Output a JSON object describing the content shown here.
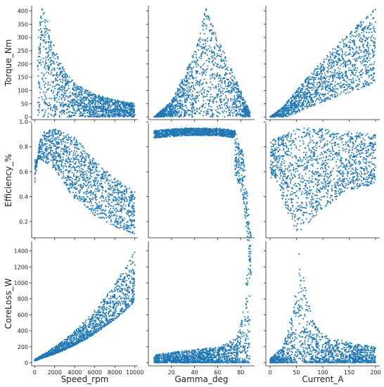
{
  "chart_data": {
    "type": "scatter",
    "subtype": "pairplot",
    "color": "#1f77b4",
    "grid": false,
    "variables": [
      "Speed_rpm",
      "Gamma_deg",
      "Current_A"
    ],
    "row_variables": [
      "Torque_Nm",
      "Efficiency_%",
      "CoreLoss_W"
    ],
    "x_axes": [
      {
        "label": "Speed_rpm",
        "range": [
          -300,
          10300
        ],
        "ticks": [
          0,
          2000,
          4000,
          6000,
          8000,
          10000
        ],
        "tick_labels": [
          "0",
          "2000",
          "4000",
          "6000",
          "8000",
          "10000"
        ]
      },
      {
        "label": "Gamma_deg",
        "range": [
          0,
          92
        ],
        "ticks": [
          20,
          40,
          60,
          80
        ],
        "tick_labels": [
          "20",
          "40",
          "60",
          "80"
        ]
      },
      {
        "label": "Current_A",
        "range": [
          -8,
          208
        ],
        "ticks": [
          0,
          50,
          100,
          150,
          200
        ],
        "tick_labels": [
          "0",
          "50",
          "100",
          "150",
          "200"
        ]
      }
    ],
    "y_axes": [
      {
        "label": "Torque_Nm",
        "range": [
          -10,
          420
        ],
        "ticks": [
          0,
          50,
          100,
          150,
          200,
          250,
          300,
          350,
          400
        ],
        "tick_labels": [
          "0",
          "50",
          "100",
          "150",
          "200",
          "250",
          "300",
          "350",
          "400"
        ]
      },
      {
        "label": "Efficiency_%",
        "range": [
          0.07,
          0.99
        ],
        "ticks": [
          0.2,
          0.4,
          0.6,
          0.8,
          1.0
        ],
        "tick_labels": [
          "0.2",
          "0.4",
          "0.6",
          "0.8",
          "1.0"
        ]
      },
      {
        "label": "CoreLoss_W",
        "range": [
          -40,
          1520
        ],
        "ticks": [
          0,
          200,
          400,
          600,
          800,
          1000,
          1200,
          1400
        ],
        "tick_labels": [
          "0",
          "200",
          "400",
          "600",
          "800",
          "1000",
          "1200",
          "1400"
        ]
      }
    ],
    "panels": [
      {
        "row": 0,
        "col": 0,
        "description_points": [
          [
            300,
            410
          ],
          [
            1000,
            410
          ],
          [
            2000,
            260
          ],
          [
            3000,
            175
          ],
          [
            4000,
            130
          ],
          [
            5000,
            105
          ],
          [
            6000,
            87
          ],
          [
            7000,
            75
          ],
          [
            8000,
            65
          ],
          [
            9000,
            58
          ],
          [
            10000,
            52
          ]
        ]
      },
      {
        "row": 0,
        "col": 1,
        "description_points": [
          [
            5,
            0
          ],
          [
            20,
            60
          ],
          [
            30,
            150
          ],
          [
            40,
            250
          ],
          [
            50,
            410
          ],
          [
            60,
            300
          ],
          [
            70,
            200
          ],
          [
            80,
            100
          ],
          [
            88,
            20
          ]
        ]
      },
      {
        "row": 0,
        "col": 2,
        "description_points": [
          [
            0,
            0
          ],
          [
            25,
            40
          ],
          [
            50,
            100
          ],
          [
            75,
            160
          ],
          [
            100,
            215
          ],
          [
            125,
            270
          ],
          [
            150,
            320
          ],
          [
            175,
            365
          ],
          [
            200,
            410
          ]
        ]
      },
      {
        "row": 1,
        "col": 0,
        "description_points": [
          [
            0,
            0.5
          ],
          [
            500,
            0.85
          ],
          [
            1000,
            0.93
          ],
          [
            2000,
            0.95
          ],
          [
            4000,
            0.88
          ],
          [
            6000,
            0.7
          ],
          [
            8000,
            0.55
          ],
          [
            10000,
            0.44
          ]
        ],
        "lower_envelope": [
          [
            500,
            0.7
          ],
          [
            2000,
            0.62
          ],
          [
            4000,
            0.38
          ],
          [
            6000,
            0.25
          ],
          [
            8000,
            0.16
          ],
          [
            10000,
            0.1
          ]
        ]
      },
      {
        "row": 1,
        "col": 1,
        "description_points": [
          [
            5,
            0.93
          ],
          [
            30,
            0.95
          ],
          [
            60,
            0.95
          ],
          [
            75,
            0.93
          ],
          [
            82,
            0.75
          ],
          [
            86,
            0.4
          ],
          [
            88,
            0.15
          ],
          [
            89,
            0.1
          ]
        ]
      },
      {
        "row": 1,
        "col": 2,
        "description_points": [
          [
            0,
            0.85
          ],
          [
            50,
            0.95
          ],
          [
            100,
            0.95
          ],
          [
            150,
            0.92
          ],
          [
            200,
            0.9
          ]
        ],
        "lower_envelope": [
          [
            10,
            0.55
          ],
          [
            30,
            0.3
          ],
          [
            50,
            0.1
          ],
          [
            100,
            0.3
          ],
          [
            150,
            0.45
          ],
          [
            200,
            0.5
          ]
        ]
      },
      {
        "row": 2,
        "col": 0,
        "description_points": [
          [
            0,
            40
          ],
          [
            1000,
            120
          ],
          [
            2000,
            200
          ],
          [
            3000,
            290
          ],
          [
            4000,
            400
          ],
          [
            5000,
            520
          ],
          [
            6000,
            660
          ],
          [
            7000,
            820
          ],
          [
            8000,
            990
          ],
          [
            9000,
            1180
          ],
          [
            10000,
            1400
          ]
        ]
      },
      {
        "row": 2,
        "col": 1,
        "description_points": [
          [
            5,
            100
          ],
          [
            30,
            150
          ],
          [
            60,
            200
          ],
          [
            75,
            300
          ],
          [
            80,
            500
          ],
          [
            84,
            900
          ],
          [
            86,
            1300
          ],
          [
            88,
            1500
          ]
        ]
      },
      {
        "row": 2,
        "col": 2,
        "description_points": [
          [
            0,
            50
          ],
          [
            25,
            200
          ],
          [
            45,
            700
          ],
          [
            55,
            1400
          ],
          [
            65,
            1000
          ],
          [
            80,
            550
          ],
          [
            100,
            350
          ],
          [
            150,
            250
          ],
          [
            200,
            200
          ]
        ]
      }
    ]
  }
}
